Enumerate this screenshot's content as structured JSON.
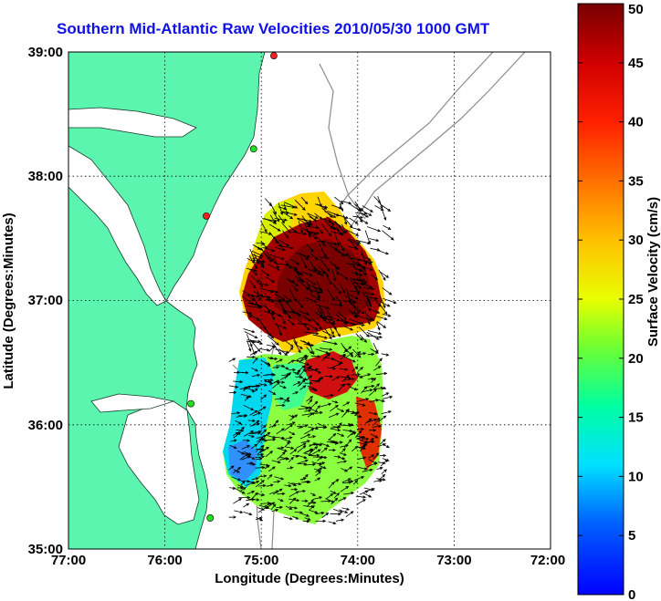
{
  "title": "Southern Mid-Atlantic Raw Velocities 2010/05/30 1000 GMT",
  "axes": {
    "xlabel": "Longitude (Degrees:Minutes)",
    "ylabel": "Latitude (Degrees:Minutes)",
    "x_ticks": [
      "77:00",
      "76:00",
      "75:00",
      "74:00",
      "73:00",
      "72:00"
    ],
    "y_ticks": [
      "39:00",
      "38:00",
      "37:00",
      "36:00",
      "35:00"
    ],
    "grid": true
  },
  "colorbar": {
    "label": "Surface Velocity (cm/s)",
    "ticks": [
      "0",
      "5",
      "10",
      "15",
      "20",
      "25",
      "30",
      "35",
      "40",
      "45",
      "50"
    ],
    "range": [
      0,
      50
    ],
    "units": "cm/s"
  },
  "colors": {
    "land": "#5cf5b0",
    "title": "#1010e8",
    "station_green": "#22dd22",
    "station_red": "#ee2222",
    "bathymetry": "#8c8c8c"
  },
  "stations": [
    {
      "lon": -74.87,
      "lat": 38.97,
      "color": "red"
    },
    {
      "lon": -75.08,
      "lat": 38.22,
      "color": "green"
    },
    {
      "lon": -75.57,
      "lat": 37.68,
      "color": "red"
    },
    {
      "lon": -75.73,
      "lat": 36.17,
      "color": "green"
    },
    {
      "lon": -75.53,
      "lat": 35.25,
      "color": "green"
    }
  ]
}
